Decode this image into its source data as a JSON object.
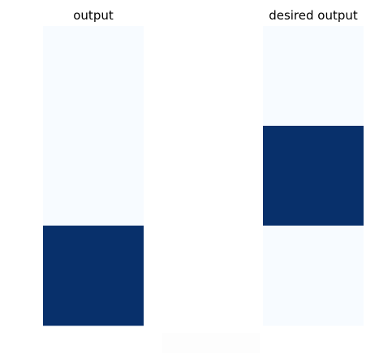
{
  "chart_data": [
    {
      "type": "heatmap",
      "title": "output",
      "values": [
        0,
        0,
        1
      ],
      "colormap": "Blues",
      "value_range": [
        0,
        1
      ],
      "colors": {
        "low": "#f7fbff",
        "high": "#08306b"
      },
      "grid": false,
      "axes_visible": false
    },
    {
      "type": "heatmap",
      "title": "desired output",
      "values": [
        0,
        1,
        0
      ],
      "colormap": "Blues",
      "value_range": [
        0,
        1
      ],
      "colors": {
        "low": "#f7fbff",
        "high": "#08306b"
      },
      "grid": false,
      "axes_visible": false
    }
  ]
}
